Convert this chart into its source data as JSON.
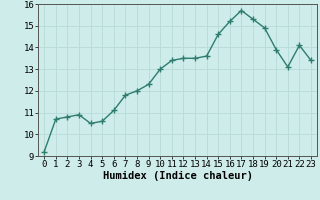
{
  "xlabel": "Humidex (Indice chaleur)",
  "x": [
    0,
    1,
    2,
    3,
    4,
    5,
    6,
    7,
    8,
    9,
    10,
    11,
    12,
    13,
    14,
    15,
    16,
    17,
    18,
    19,
    20,
    21,
    22,
    23
  ],
  "y": [
    9.2,
    10.7,
    10.8,
    10.9,
    10.5,
    10.6,
    11.1,
    11.8,
    12.0,
    12.3,
    13.0,
    13.4,
    13.5,
    13.5,
    13.6,
    14.6,
    15.2,
    15.7,
    15.3,
    14.9,
    13.9,
    13.1,
    14.1,
    13.4
  ],
  "line_color": "#2e7d6e",
  "marker": "+",
  "marker_size": 4,
  "marker_edge_width": 1.0,
  "bg_color": "#ceecea",
  "grid_color": "#b8dbd8",
  "ylim": [
    9,
    16
  ],
  "xlim": [
    -0.5,
    23.5
  ],
  "yticks": [
    9,
    10,
    11,
    12,
    13,
    14,
    15,
    16
  ],
  "xticks": [
    0,
    1,
    2,
    3,
    4,
    5,
    6,
    7,
    8,
    9,
    10,
    11,
    12,
    13,
    14,
    15,
    16,
    17,
    18,
    19,
    20,
    21,
    22,
    23
  ],
  "xlabel_fontsize": 7.5,
  "tick_fontsize": 6.5,
  "line_width": 1.0,
  "spine_color": "#555555"
}
